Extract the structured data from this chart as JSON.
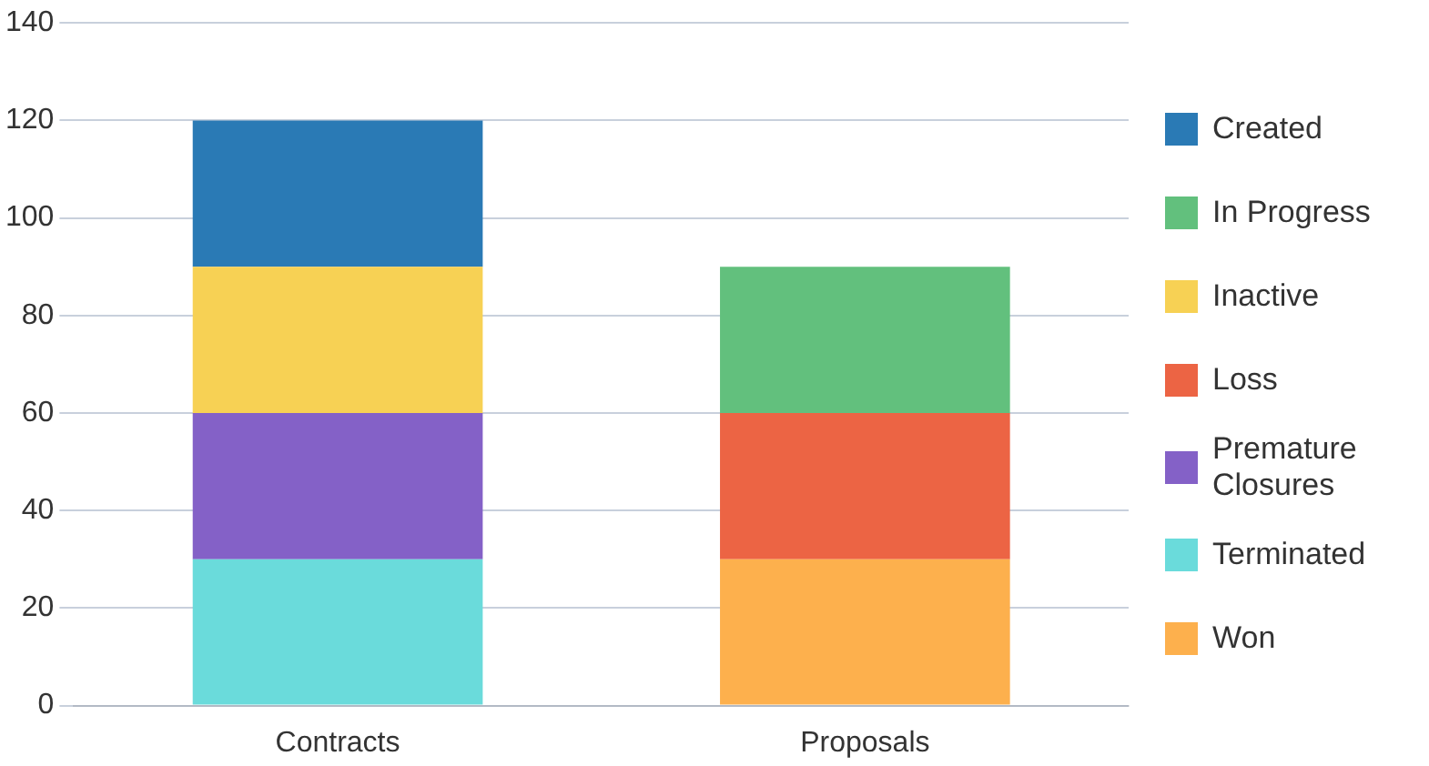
{
  "chart_data": {
    "type": "bar",
    "stacked": true,
    "categories": [
      "Contracts",
      "Proposals"
    ],
    "series": [
      {
        "name": "Won",
        "color": "#fdb04d",
        "values": [
          null,
          30
        ]
      },
      {
        "name": "Terminated",
        "color": "#6adbdb",
        "values": [
          30,
          null
        ]
      },
      {
        "name": "Premature Closures",
        "color": "#8461c7",
        "values": [
          30,
          null
        ]
      },
      {
        "name": "Loss",
        "color": "#ec6444",
        "values": [
          null,
          30
        ]
      },
      {
        "name": "Inactive",
        "color": "#f7d154",
        "values": [
          30,
          null
        ]
      },
      {
        "name": "In Progress",
        "color": "#62c07d",
        "values": [
          null,
          30
        ]
      },
      {
        "name": "Created",
        "color": "#2a7ab5",
        "values": [
          30,
          null
        ]
      }
    ],
    "ylim": [
      0,
      140
    ],
    "yticks": [
      0,
      20,
      40,
      60,
      80,
      100,
      120,
      140
    ],
    "grid": "y",
    "legend": "right"
  }
}
